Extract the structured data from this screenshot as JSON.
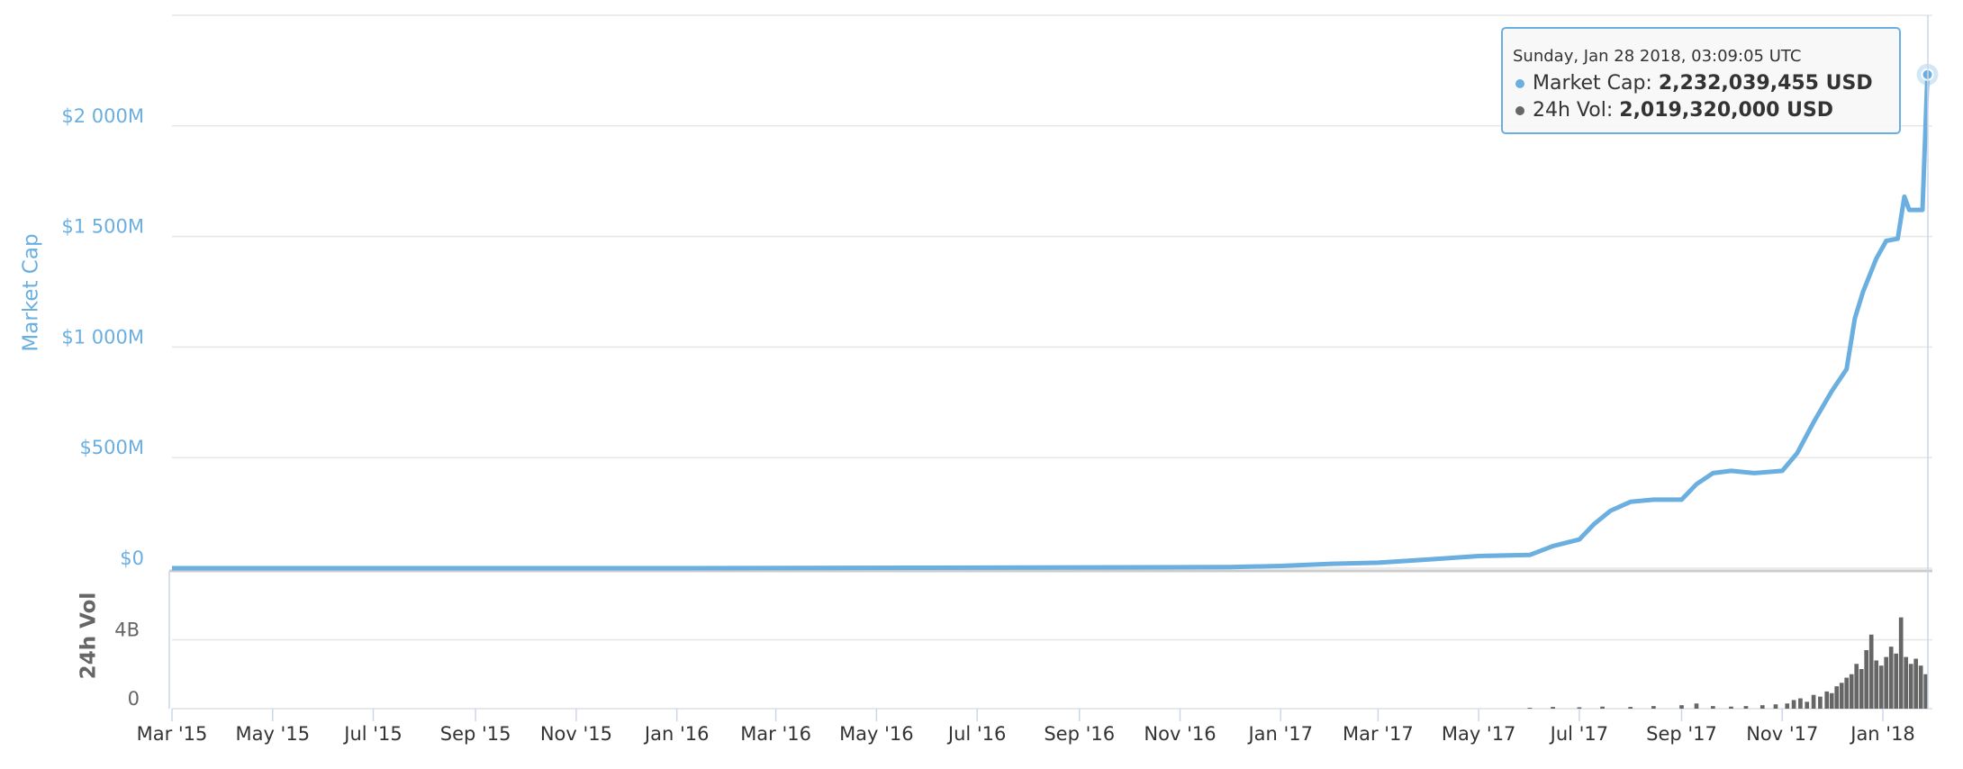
{
  "chart_data": [
    {
      "type": "line",
      "y_label": "Market Cap",
      "xlim": [
        "2015-03-01",
        "2018-01-31"
      ],
      "ylim": [
        0,
        2500
      ],
      "yticks": [
        {
          "value": 0,
          "label": "$0"
        },
        {
          "value": 500,
          "label": "$500M"
        },
        {
          "value": 1000,
          "label": "$1 000M"
        },
        {
          "value": 1500,
          "label": "$1 500M"
        },
        {
          "value": 2000,
          "label": "$2 000M"
        }
      ],
      "grid": true,
      "series": [
        {
          "name": "Market Cap",
          "color": "#6aafe0",
          "x": [
            "2015-03-01",
            "2016-01-01",
            "2016-06-01",
            "2016-12-01",
            "2017-01-01",
            "2017-02-01",
            "2017-03-01",
            "2017-04-01",
            "2017-05-01",
            "2017-06-01",
            "2017-06-15",
            "2017-07-01",
            "2017-07-10",
            "2017-07-20",
            "2017-08-01",
            "2017-08-15",
            "2017-09-01",
            "2017-09-10",
            "2017-09-20",
            "2017-10-01",
            "2017-10-15",
            "2017-11-01",
            "2017-11-10",
            "2017-11-20",
            "2017-12-01",
            "2017-12-10",
            "2017-12-15",
            "2017-12-20",
            "2017-12-28",
            "2018-01-03",
            "2018-01-10",
            "2018-01-14",
            "2018-01-17",
            "2018-01-25",
            "2018-01-28"
          ],
          "values": [
            0,
            0,
            2,
            5,
            10,
            20,
            25,
            40,
            55,
            60,
            100,
            130,
            200,
            260,
            300,
            310,
            310,
            380,
            430,
            440,
            430,
            440,
            520,
            660,
            800,
            900,
            1130,
            1250,
            1400,
            1480,
            1490,
            1680,
            1620,
            1620,
            2232
          ]
        }
      ]
    },
    {
      "type": "bar",
      "y_label": "24h Vol",
      "xlim": [
        "2015-03-01",
        "2018-01-31"
      ],
      "ylim": [
        0,
        8
      ],
      "yticks": [
        0,
        {
          "value": 4,
          "label": "4B"
        }
      ],
      "xticks": [
        {
          "value": "2015-03-01",
          "label": "Mar '15"
        },
        {
          "value": "2015-05-01",
          "label": "May '15"
        },
        {
          "value": "2015-07-01",
          "label": "Jul '15"
        },
        {
          "value": "2015-09-01",
          "label": "Sep '15"
        },
        {
          "value": "2015-11-01",
          "label": "Nov '15"
        },
        {
          "value": "2016-01-01",
          "label": "Jan '16"
        },
        {
          "value": "2016-03-01",
          "label": "Mar '16"
        },
        {
          "value": "2016-05-01",
          "label": "May '16"
        },
        {
          "value": "2016-07-01",
          "label": "Jul '16"
        },
        {
          "value": "2016-09-01",
          "label": "Sep '16"
        },
        {
          "value": "2016-11-01",
          "label": "Nov '16"
        },
        {
          "value": "2017-01-01",
          "label": "Jan '17"
        },
        {
          "value": "2017-03-01",
          "label": "Mar '17"
        },
        {
          "value": "2017-05-01",
          "label": "May '17"
        },
        {
          "value": "2017-07-01",
          "label": "Jul '17"
        },
        {
          "value": "2017-09-01",
          "label": "Sep '17"
        },
        {
          "value": "2017-11-01",
          "label": "Nov '17"
        },
        {
          "value": "2018-01-01",
          "label": "Jan '18"
        }
      ],
      "grid": true,
      "series": [
        {
          "name": "24h Vol",
          "color": "#666666",
          "x": [
            "2017-06-01",
            "2017-06-15",
            "2017-07-01",
            "2017-07-15",
            "2017-08-01",
            "2017-08-15",
            "2017-09-01",
            "2017-09-10",
            "2017-09-20",
            "2017-10-01",
            "2017-10-10",
            "2017-10-20",
            "2017-10-28",
            "2017-11-04",
            "2017-11-08",
            "2017-11-12",
            "2017-11-16",
            "2017-11-20",
            "2017-11-24",
            "2017-11-28",
            "2017-12-01",
            "2017-12-04",
            "2017-12-07",
            "2017-12-10",
            "2017-12-13",
            "2017-12-16",
            "2017-12-19",
            "2017-12-22",
            "2017-12-25",
            "2017-12-28",
            "2017-12-31",
            "2018-01-03",
            "2018-01-06",
            "2018-01-09",
            "2018-01-12",
            "2018-01-15",
            "2018-01-18",
            "2018-01-21",
            "2018-01-24",
            "2018-01-27"
          ],
          "values": [
            0.05,
            0.1,
            0.08,
            0.12,
            0.1,
            0.15,
            0.2,
            0.3,
            0.15,
            0.12,
            0.15,
            0.2,
            0.25,
            0.3,
            0.5,
            0.6,
            0.4,
            0.8,
            0.7,
            1.0,
            0.9,
            1.3,
            1.5,
            1.8,
            2.0,
            2.6,
            2.3,
            3.4,
            4.3,
            2.8,
            2.5,
            3.0,
            3.6,
            3.2,
            5.3,
            3.0,
            2.6,
            2.9,
            2.5,
            2.0
          ]
        }
      ]
    }
  ],
  "tooltip": {
    "date": "Sunday, Jan 28 2018, 03:09:05 UTC",
    "items": [
      {
        "label": "Market Cap:",
        "value": "2,232,039,455 USD"
      },
      {
        "label": "24h Vol:",
        "value": "2,019,320,000 USD"
      }
    ]
  }
}
